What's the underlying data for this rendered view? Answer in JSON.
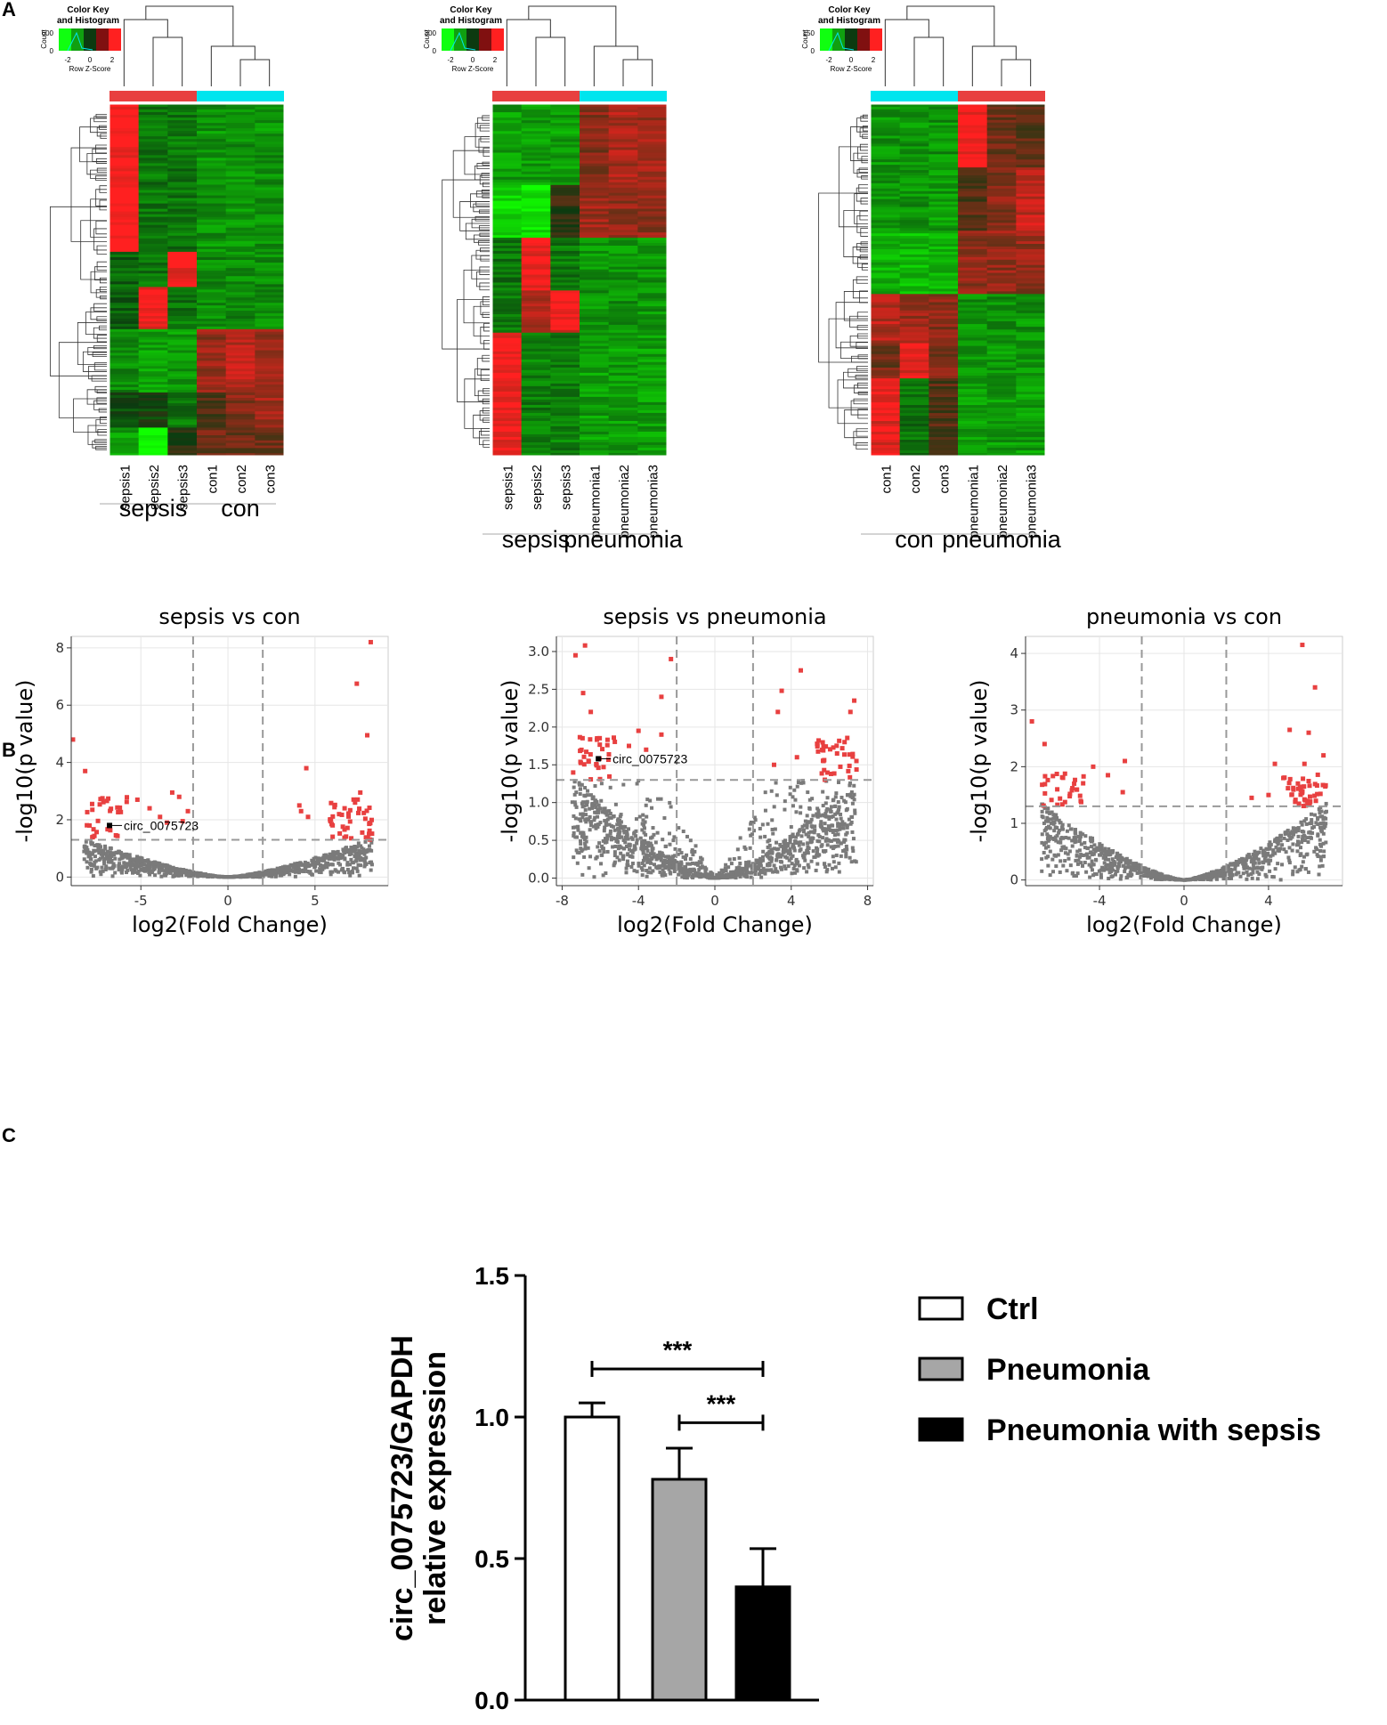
{
  "panels": {
    "a": "A",
    "b": "B",
    "c": "C"
  },
  "colors": {
    "red": "#e84040",
    "cyan": "#00e5ee",
    "gray_point": "#7a7a7a",
    "heat_high": "#ff2020",
    "heat_low": "#10ff10",
    "heat_mid": "#0c3a10",
    "bar_ctrl": "#ffffff",
    "bar_pneumonia": "#a6a6a6",
    "bar_sepsis": "#000000"
  },
  "color_key": {
    "title": "Color Key and Histogram",
    "title_line1": "Color Key",
    "title_line2": "and Histogram",
    "xlabel": "Row Z-Score",
    "ylabel": "Count",
    "ticks": [
      "-2",
      "0",
      "2"
    ]
  },
  "heatmaps": [
    {
      "id": "sepsis-con",
      "samples": [
        "sepsis1",
        "sepsis2",
        "sepsis3",
        "con1",
        "con2",
        "con3"
      ],
      "groups": [
        "sepsis",
        "con"
      ],
      "group_bar_colors": [
        "red",
        "cyan"
      ],
      "count_ticks": [
        "0",
        "600"
      ]
    },
    {
      "id": "sepsis-pneumonia",
      "samples": [
        "sepsis1",
        "sepsis2",
        "sepsis3",
        "pneumonia1",
        "pneumonia2",
        "pneumonia3"
      ],
      "groups": [
        "sepsis",
        "pneumonia"
      ],
      "group_bar_colors": [
        "red",
        "cyan"
      ],
      "count_ticks": [
        "0",
        "300"
      ]
    },
    {
      "id": "con-pneumonia",
      "samples": [
        "con1",
        "con2",
        "con3",
        "pneumonia1",
        "pneumonia2",
        "pneumonia3"
      ],
      "groups": [
        "con",
        "pneumonia"
      ],
      "group_bar_colors": [
        "cyan",
        "red"
      ],
      "count_ticks": [
        "0",
        "150"
      ]
    }
  ],
  "chart_data": [
    {
      "type": "scatter",
      "title": "sepsis vs con",
      "xlabel": "log2(Fold Change)",
      "ylabel": "-log10(p value)",
      "xlim": [
        -9,
        9.2
      ],
      "ylim": [
        -0.3,
        8.4
      ],
      "xticks": [
        -5,
        0,
        5
      ],
      "yticks": [
        0,
        2,
        4,
        6,
        8
      ],
      "vlines": [
        -2,
        2
      ],
      "hline": 1.3,
      "annotation": {
        "label": "circ_0075723",
        "x": -6.8,
        "y": 1.8
      },
      "highlight_points": [
        {
          "x": 8.2,
          "y": 8.2
        },
        {
          "x": 7.4,
          "y": 6.75
        },
        {
          "x": 8.0,
          "y": 4.95
        },
        {
          "x": -8.9,
          "y": 4.8
        },
        {
          "x": -8.2,
          "y": 3.7
        },
        {
          "x": 4.5,
          "y": 3.8
        },
        {
          "x": -3.2,
          "y": 2.95
        },
        {
          "x": -2.8,
          "y": 2.8
        },
        {
          "x": -5.2,
          "y": 2.7
        },
        {
          "x": -7.8,
          "y": 2.55
        },
        {
          "x": 4.1,
          "y": 2.5
        },
        {
          "x": 4.2,
          "y": 2.3
        },
        {
          "x": -4.5,
          "y": 2.4
        },
        {
          "x": 7.6,
          "y": 2.95
        },
        {
          "x": 7.3,
          "y": 2.6
        },
        {
          "x": 6.7,
          "y": 2.4
        },
        {
          "x": 4.6,
          "y": 2.1
        },
        {
          "x": -3.9,
          "y": 2.1
        },
        {
          "x": -3.5,
          "y": 1.9
        },
        {
          "x": -2.3,
          "y": 2.3
        },
        {
          "x": -2.6,
          "y": 1.95
        }
      ]
    },
    {
      "type": "scatter",
      "title": "sepsis vs pneumonia",
      "xlabel": "log2(Fold Change)",
      "ylabel": "-log10(p value)",
      "xlim": [
        -8.3,
        8.3
      ],
      "ylim": [
        -0.1,
        3.2
      ],
      "xticks": [
        -8,
        -4,
        0,
        4,
        8
      ],
      "yticks": [
        0.0,
        0.5,
        1.0,
        1.5,
        2.0,
        2.5,
        3.0
      ],
      "vlines": [
        -2,
        2
      ],
      "hline": 1.3,
      "annotation": {
        "label": "circ_0075723",
        "x": -6.1,
        "y": 1.58
      },
      "highlight_points": [
        {
          "x": -6.8,
          "y": 3.08
        },
        {
          "x": -7.3,
          "y": 2.95
        },
        {
          "x": -2.3,
          "y": 2.9
        },
        {
          "x": 4.5,
          "y": 2.75
        },
        {
          "x": -6.9,
          "y": 2.45
        },
        {
          "x": 3.5,
          "y": 2.48
        },
        {
          "x": -2.8,
          "y": 2.4
        },
        {
          "x": 3.3,
          "y": 2.2
        },
        {
          "x": -6.5,
          "y": 2.2
        },
        {
          "x": -4.0,
          "y": 1.95
        },
        {
          "x": -2.8,
          "y": 1.9
        },
        {
          "x": -4.5,
          "y": 1.75
        },
        {
          "x": -3.6,
          "y": 1.7
        },
        {
          "x": 4.3,
          "y": 1.6
        },
        {
          "x": 3.1,
          "y": 1.5
        },
        {
          "x": 7.3,
          "y": 2.35
        },
        {
          "x": 7.1,
          "y": 2.2
        },
        {
          "x": 6.4,
          "y": 1.65
        }
      ]
    },
    {
      "type": "scatter",
      "title": "pneumonia vs con",
      "xlabel": "log2(Fold Change)",
      "ylabel": "-log10(p value)",
      "xlim": [
        -7.5,
        7.5
      ],
      "ylim": [
        -0.1,
        4.3
      ],
      "xticks": [
        -4,
        0,
        4
      ],
      "yticks": [
        0,
        1,
        2,
        3,
        4
      ],
      "vlines": [
        -2,
        2
      ],
      "hline": 1.3,
      "annotation": null,
      "highlight_points": [
        {
          "x": 5.6,
          "y": 4.15
        },
        {
          "x": 6.2,
          "y": 3.4
        },
        {
          "x": -7.2,
          "y": 2.8
        },
        {
          "x": -6.6,
          "y": 2.4
        },
        {
          "x": 5.0,
          "y": 2.65
        },
        {
          "x": 5.9,
          "y": 2.6
        },
        {
          "x": -2.8,
          "y": 2.1
        },
        {
          "x": -4.3,
          "y": 2.0
        },
        {
          "x": 4.3,
          "y": 2.05
        },
        {
          "x": 5.7,
          "y": 2.05
        },
        {
          "x": -3.6,
          "y": 1.85
        },
        {
          "x": 4.7,
          "y": 1.8
        },
        {
          "x": -5.2,
          "y": 1.7
        },
        {
          "x": -2.9,
          "y": 1.55
        },
        {
          "x": 3.2,
          "y": 1.45
        },
        {
          "x": -6.0,
          "y": 1.6
        },
        {
          "x": 6.6,
          "y": 2.2
        },
        {
          "x": 4.0,
          "y": 1.5
        }
      ]
    },
    {
      "type": "bar",
      "categories": [
        "Ctrl",
        "Pneumonia",
        "Pneumonia with sepsis"
      ],
      "values": [
        1.0,
        0.78,
        0.4
      ],
      "errors": [
        0.05,
        0.11,
        0.135
      ],
      "ylabel": "circ_0075723/GAPDH relative expression",
      "ylabel_line1": "circ_0075723/GAPDH",
      "ylabel_line2": "relative expression",
      "ylim": [
        0,
        1.5
      ],
      "yticks": [
        "0.0",
        "0.5",
        "1.0",
        "1.5"
      ],
      "significance": [
        {
          "from": "Ctrl",
          "to": "Pneumonia with sepsis",
          "label": "***",
          "y": 1.17
        },
        {
          "from": "Pneumonia",
          "to": "Pneumonia with sepsis",
          "label": "***",
          "y": 0.98
        }
      ],
      "legend": [
        "Ctrl",
        "Pneumonia",
        "Pneumonia with sepsis"
      ]
    }
  ]
}
